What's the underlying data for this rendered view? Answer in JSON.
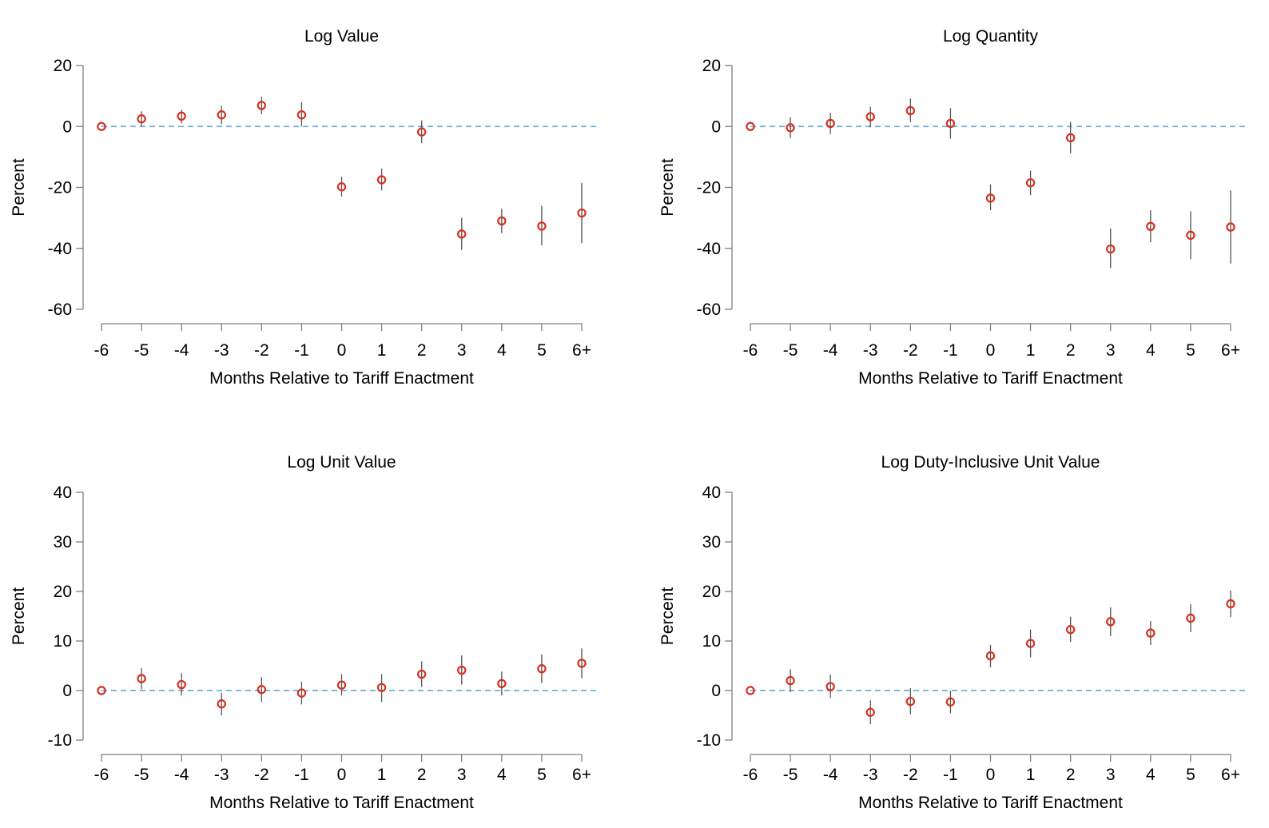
{
  "colors": {
    "marker": "#d7301f",
    "zero_line": "#6baed6",
    "ci": "#555555"
  },
  "chart_data": [
    {
      "type": "scatter",
      "title": "Log Value",
      "xlabel": "Months Relative to Tariff Enactment",
      "ylabel": "Percent",
      "categories": [
        "-6",
        "-5",
        "-4",
        "-3",
        "-2",
        "-1",
        "0",
        "1",
        "2",
        "3",
        "4",
        "5",
        "6+"
      ],
      "values": [
        0,
        2.5,
        3.4,
        3.8,
        6.9,
        3.8,
        -19.8,
        -17.5,
        -1.8,
        -35.3,
        -31,
        -32.7,
        -28.4
      ],
      "ci_low": [
        0,
        0,
        1,
        0.8,
        4,
        0,
        -23,
        -21,
        -5.5,
        -40.5,
        -35,
        -39,
        -38.3
      ],
      "ci_high": [
        0,
        5,
        5.5,
        6.8,
        9.8,
        8,
        -16.5,
        -13.8,
        2,
        -30,
        -27,
        -26,
        -18.5
      ],
      "ylim": [
        -60,
        20
      ],
      "yticks": [
        20,
        0,
        -20,
        -40,
        -60
      ],
      "reference_line": 0,
      "grid": false
    },
    {
      "type": "scatter",
      "title": "Log Quantity",
      "xlabel": "Months Relative to Tariff Enactment",
      "ylabel": "Percent",
      "categories": [
        "-6",
        "-5",
        "-4",
        "-3",
        "-2",
        "-1",
        "0",
        "1",
        "2",
        "3",
        "4",
        "5",
        "6+"
      ],
      "values": [
        0,
        -0.4,
        1,
        3.2,
        5.2,
        1,
        -23.5,
        -18.5,
        -3.7,
        -40.2,
        -32.8,
        -35.7,
        -33
      ],
      "ci_low": [
        0,
        -3.8,
        -2.5,
        -0.3,
        1.5,
        -4,
        -27.5,
        -22.5,
        -8.8,
        -46.5,
        -38,
        -43.5,
        -45
      ],
      "ci_high": [
        0,
        3,
        4.5,
        6.5,
        9.2,
        6,
        -19,
        -14.5,
        1.5,
        -33.5,
        -27.5,
        -27.8,
        -21
      ],
      "ylim": [
        -60,
        20
      ],
      "yticks": [
        20,
        0,
        -20,
        -40,
        -60
      ],
      "reference_line": 0,
      "grid": false
    },
    {
      "type": "scatter",
      "title": "Log Unit Value",
      "xlabel": "Months Relative to Tariff Enactment",
      "ylabel": "Percent",
      "categories": [
        "-6",
        "-5",
        "-4",
        "-3",
        "-2",
        "-1",
        "0",
        "1",
        "2",
        "3",
        "4",
        "5",
        "6+"
      ],
      "values": [
        0,
        2.4,
        1.2,
        -2.7,
        0.2,
        -0.5,
        1.1,
        0.6,
        3.3,
        4.1,
        1.4,
        4.4,
        5.5
      ],
      "ci_low": [
        0,
        0.3,
        -1,
        -5,
        -2.3,
        -2.8,
        -1,
        -2.3,
        0.7,
        1.2,
        -1,
        1.5,
        2.5
      ],
      "ci_high": [
        0,
        4.5,
        3.5,
        -0.5,
        2.7,
        1.8,
        3.3,
        3.3,
        5.9,
        7.1,
        3.8,
        7.3,
        8.5
      ],
      "ylim": [
        -10,
        40
      ],
      "yticks": [
        40,
        30,
        20,
        10,
        0,
        -10
      ],
      "reference_line": 0,
      "grid": false
    },
    {
      "type": "scatter",
      "title": "Log Duty-Inclusive Unit Value",
      "xlabel": "Months Relative to Tariff Enactment",
      "ylabel": "Percent",
      "categories": [
        "-6",
        "-5",
        "-4",
        "-3",
        "-2",
        "-1",
        "0",
        "1",
        "2",
        "3",
        "4",
        "5",
        "6+"
      ],
      "values": [
        0,
        2,
        0.8,
        -4.4,
        -2.2,
        -2.3,
        7,
        9.5,
        12.3,
        13.9,
        11.6,
        14.6,
        17.5
      ],
      "ci_low": [
        0,
        -0.3,
        -1.5,
        -6.8,
        -4.8,
        -4.6,
        4.7,
        6.7,
        9.8,
        11,
        9.2,
        11.8,
        14.8
      ],
      "ci_high": [
        0,
        4.3,
        3.2,
        -2,
        0.5,
        0,
        9.2,
        12.3,
        14.9,
        16.8,
        14,
        17.4,
        20.2
      ],
      "ylim": [
        -10,
        40
      ],
      "yticks": [
        40,
        30,
        20,
        10,
        0,
        -10
      ],
      "reference_line": 0,
      "grid": false
    }
  ]
}
